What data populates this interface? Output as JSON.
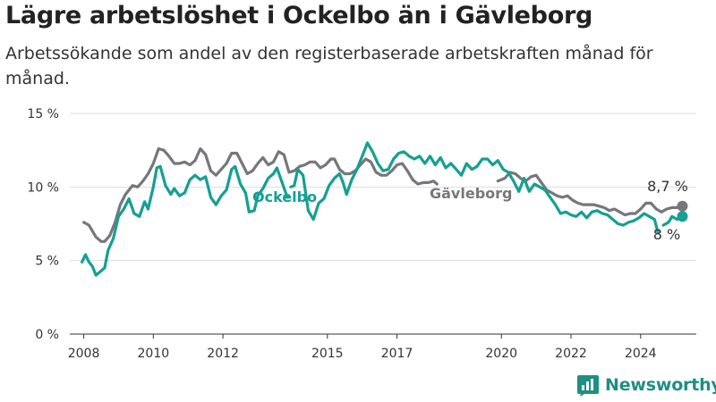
{
  "title": "Lägre arbetslöshet i Ockelbo än i Gävleborg",
  "subtitle": "Arbetssökande som andel av den registerbaserade arbetskraften månad för månad.",
  "brand": {
    "name": "Newsworthy",
    "icon": "newsworthy-chart-icon"
  },
  "colors": {
    "ockelbo": "#14a092",
    "gavleborg": "#77767b",
    "grid": "#dddddd",
    "axis": "#333333"
  },
  "chart_data": {
    "type": "line",
    "xlim": [
      2007.6,
      2025.6
    ],
    "ylim": [
      0,
      15
    ],
    "yticks": [
      {
        "value": 0,
        "label": "0 %"
      },
      {
        "value": 5,
        "label": "5 %"
      },
      {
        "value": 10,
        "label": "10 %"
      },
      {
        "value": 15,
        "label": "15 %"
      }
    ],
    "xticks": [
      {
        "value": 2008,
        "label": "2008"
      },
      {
        "value": 2010,
        "label": "2010"
      },
      {
        "value": 2012,
        "label": "2012"
      },
      {
        "value": 2015,
        "label": "2015"
      },
      {
        "value": 2017,
        "label": "2017"
      },
      {
        "value": 2020,
        "label": "2020"
      },
      {
        "value": 2022,
        "label": "2022"
      },
      {
        "value": 2024,
        "label": "2024"
      }
    ],
    "grid": true,
    "series": [
      {
        "name": "Gävleborg",
        "color": "#77767b",
        "end_label": "8,7 %",
        "points": [
          [
            2008.0,
            7.6
          ],
          [
            2008.15,
            7.4
          ],
          [
            2008.35,
            6.6
          ],
          [
            2008.5,
            6.3
          ],
          [
            2008.6,
            6.3
          ],
          [
            2008.75,
            6.7
          ],
          [
            2008.9,
            7.6
          ],
          [
            2009.05,
            8.8
          ],
          [
            2009.2,
            9.5
          ],
          [
            2009.4,
            10.1
          ],
          [
            2009.55,
            10.0
          ],
          [
            2009.7,
            10.4
          ],
          [
            2009.85,
            10.9
          ],
          [
            2010.0,
            11.6
          ],
          [
            2010.15,
            12.6
          ],
          [
            2010.3,
            12.5
          ],
          [
            2010.45,
            12.1
          ],
          [
            2010.6,
            11.6
          ],
          [
            2010.75,
            11.6
          ],
          [
            2010.9,
            11.7
          ],
          [
            2011.05,
            11.5
          ],
          [
            2011.2,
            11.8
          ],
          [
            2011.35,
            12.6
          ],
          [
            2011.5,
            12.2
          ],
          [
            2011.65,
            11.1
          ],
          [
            2011.8,
            10.8
          ],
          [
            2011.95,
            11.2
          ],
          [
            2012.1,
            11.6
          ],
          [
            2012.25,
            12.3
          ],
          [
            2012.4,
            12.3
          ],
          [
            2012.55,
            11.6
          ],
          [
            2012.7,
            10.9
          ],
          [
            2012.85,
            11.1
          ],
          [
            2013.0,
            11.6
          ],
          [
            2013.15,
            12.0
          ],
          [
            2013.3,
            11.5
          ],
          [
            2013.45,
            11.7
          ],
          [
            2013.6,
            12.4
          ],
          [
            2013.75,
            12.2
          ],
          [
            2013.9,
            11.0
          ],
          [
            2014.05,
            11.1
          ],
          [
            2014.2,
            11.4
          ],
          [
            2014.35,
            11.5
          ],
          [
            2014.5,
            11.7
          ],
          [
            2014.65,
            11.7
          ],
          [
            2014.8,
            11.3
          ],
          [
            2014.95,
            11.5
          ],
          [
            2015.1,
            11.9
          ],
          [
            2015.2,
            11.9
          ],
          [
            2015.35,
            11.2
          ],
          [
            2015.5,
            10.9
          ],
          [
            2015.65,
            10.9
          ],
          [
            2015.8,
            11.1
          ],
          [
            2015.95,
            11.5
          ],
          [
            2016.1,
            11.9
          ],
          [
            2016.25,
            11.7
          ],
          [
            2016.4,
            11.0
          ],
          [
            2016.55,
            10.8
          ],
          [
            2016.7,
            10.8
          ],
          [
            2016.85,
            11.1
          ],
          [
            2017.0,
            11.5
          ],
          [
            2017.15,
            11.6
          ],
          [
            2017.3,
            11.1
          ],
          [
            2017.45,
            10.5
          ],
          [
            2017.6,
            10.2
          ],
          [
            2017.75,
            10.3
          ],
          [
            2017.9,
            10.3
          ],
          [
            2018.05,
            10.4
          ],
          [
            2018.15,
            10.2
          ]
        ],
        "points_2": [
          [
            2019.9,
            10.4
          ],
          [
            2020.1,
            10.6
          ],
          [
            2020.25,
            11.0
          ],
          [
            2020.4,
            10.9
          ],
          [
            2020.55,
            10.6
          ],
          [
            2020.7,
            10.4
          ],
          [
            2020.85,
            10.7
          ],
          [
            2021.0,
            10.8
          ],
          [
            2021.15,
            10.3
          ],
          [
            2021.3,
            9.8
          ],
          [
            2021.45,
            9.6
          ],
          [
            2021.6,
            9.4
          ],
          [
            2021.75,
            9.3
          ],
          [
            2021.9,
            9.4
          ],
          [
            2022.05,
            9.1
          ],
          [
            2022.2,
            8.9
          ],
          [
            2022.35,
            8.8
          ],
          [
            2022.5,
            8.8
          ],
          [
            2022.65,
            8.8
          ],
          [
            2022.8,
            8.7
          ],
          [
            2022.95,
            8.6
          ],
          [
            2023.1,
            8.4
          ],
          [
            2023.25,
            8.5
          ],
          [
            2023.4,
            8.3
          ],
          [
            2023.55,
            8.1
          ],
          [
            2023.7,
            8.2
          ],
          [
            2023.85,
            8.2
          ],
          [
            2024.0,
            8.5
          ],
          [
            2024.15,
            8.9
          ],
          [
            2024.3,
            8.9
          ],
          [
            2024.45,
            8.5
          ],
          [
            2024.6,
            8.3
          ],
          [
            2024.75,
            8.5
          ],
          [
            2024.9,
            8.6
          ],
          [
            2025.05,
            8.6
          ],
          [
            2025.2,
            8.7
          ]
        ]
      },
      {
        "name": "Ockelbo",
        "color": "#14a092",
        "end_label": "8 %",
        "points": [
          [
            2007.95,
            4.9
          ],
          [
            2008.05,
            5.4
          ],
          [
            2008.15,
            4.9
          ],
          [
            2008.25,
            4.6
          ],
          [
            2008.35,
            4.0
          ],
          [
            2008.5,
            4.3
          ],
          [
            2008.6,
            4.5
          ],
          [
            2008.7,
            5.7
          ],
          [
            2008.85,
            6.5
          ],
          [
            2009.0,
            8.0
          ],
          [
            2009.15,
            8.5
          ],
          [
            2009.3,
            9.2
          ],
          [
            2009.45,
            8.2
          ],
          [
            2009.6,
            8.0
          ],
          [
            2009.75,
            9.0
          ],
          [
            2009.85,
            8.5
          ],
          [
            2010.0,
            10.0
          ],
          [
            2010.1,
            11.3
          ],
          [
            2010.2,
            11.4
          ],
          [
            2010.35,
            10.1
          ],
          [
            2010.5,
            9.5
          ],
          [
            2010.6,
            9.9
          ],
          [
            2010.75,
            9.4
          ],
          [
            2010.9,
            9.6
          ],
          [
            2011.05,
            10.5
          ],
          [
            2011.2,
            10.8
          ],
          [
            2011.35,
            10.5
          ],
          [
            2011.5,
            10.7
          ],
          [
            2011.65,
            9.3
          ],
          [
            2011.8,
            8.8
          ],
          [
            2011.95,
            9.4
          ],
          [
            2012.1,
            9.8
          ],
          [
            2012.25,
            11.2
          ],
          [
            2012.35,
            11.4
          ],
          [
            2012.5,
            10.2
          ],
          [
            2012.65,
            9.6
          ],
          [
            2012.75,
            8.3
          ],
          [
            2012.9,
            8.4
          ],
          [
            2013.0,
            9.4
          ],
          [
            2013.15,
            9.9
          ],
          [
            2013.3,
            10.6
          ],
          [
            2013.45,
            10.9
          ],
          [
            2013.55,
            11.3
          ],
          [
            2013.7,
            10.3
          ],
          [
            2013.85,
            9.3
          ]
        ],
        "points_2": [
          [
            2013.95,
            10.0
          ],
          [
            2014.05,
            10.1
          ],
          [
            2014.15,
            11.2
          ],
          [
            2014.3,
            10.8
          ],
          [
            2014.45,
            8.4
          ],
          [
            2014.6,
            7.8
          ],
          [
            2014.75,
            8.9
          ],
          [
            2014.9,
            9.2
          ],
          [
            2015.05,
            10.1
          ],
          [
            2015.2,
            10.6
          ],
          [
            2015.35,
            10.9
          ],
          [
            2015.45,
            10.3
          ],
          [
            2015.55,
            9.5
          ],
          [
            2015.7,
            10.5
          ],
          [
            2015.85,
            11.2
          ],
          [
            2016.0,
            12.1
          ],
          [
            2016.15,
            13.0
          ],
          [
            2016.3,
            12.4
          ],
          [
            2016.45,
            11.6
          ],
          [
            2016.6,
            11.1
          ],
          [
            2016.75,
            11.2
          ],
          [
            2016.9,
            11.9
          ],
          [
            2017.05,
            12.3
          ],
          [
            2017.2,
            12.4
          ],
          [
            2017.35,
            12.1
          ],
          [
            2017.5,
            11.9
          ],
          [
            2017.65,
            12.1
          ],
          [
            2017.8,
            11.6
          ],
          [
            2017.95,
            12.1
          ],
          [
            2018.1,
            11.5
          ],
          [
            2018.25,
            12.0
          ],
          [
            2018.4,
            11.3
          ],
          [
            2018.55,
            11.6
          ],
          [
            2018.7,
            11.2
          ],
          [
            2018.85,
            10.8
          ],
          [
            2019.0,
            11.6
          ],
          [
            2019.15,
            11.2
          ],
          [
            2019.3,
            11.4
          ],
          [
            2019.45,
            11.9
          ],
          [
            2019.6,
            11.9
          ],
          [
            2019.75,
            11.5
          ],
          [
            2019.9,
            11.8
          ],
          [
            2020.05,
            11.2
          ],
          [
            2020.2,
            11.0
          ],
          [
            2020.35,
            10.4
          ],
          [
            2020.5,
            9.7
          ],
          [
            2020.65,
            10.6
          ],
          [
            2020.8,
            9.7
          ],
          [
            2020.95,
            10.2
          ],
          [
            2021.1,
            10.0
          ],
          [
            2021.25,
            9.8
          ],
          [
            2021.4,
            9.3
          ],
          [
            2021.55,
            8.8
          ],
          [
            2021.7,
            8.2
          ],
          [
            2021.85,
            8.3
          ],
          [
            2022.0,
            8.1
          ],
          [
            2022.15,
            8.0
          ],
          [
            2022.3,
            8.3
          ],
          [
            2022.45,
            7.9
          ],
          [
            2022.6,
            8.3
          ],
          [
            2022.75,
            8.4
          ],
          [
            2022.9,
            8.2
          ],
          [
            2023.05,
            8.1
          ],
          [
            2023.2,
            7.8
          ],
          [
            2023.35,
            7.5
          ],
          [
            2023.5,
            7.4
          ],
          [
            2023.65,
            7.6
          ],
          [
            2023.8,
            7.7
          ],
          [
            2023.95,
            7.9
          ],
          [
            2024.1,
            8.2
          ],
          [
            2024.25,
            8.0
          ],
          [
            2024.4,
            7.8
          ],
          [
            2024.5,
            6.9
          ]
        ],
        "points_3": [
          [
            2024.65,
            7.4
          ],
          [
            2024.8,
            7.6
          ],
          [
            2024.9,
            8.0
          ],
          [
            2025.05,
            7.8
          ],
          [
            2025.2,
            8.0
          ]
        ]
      }
    ]
  }
}
